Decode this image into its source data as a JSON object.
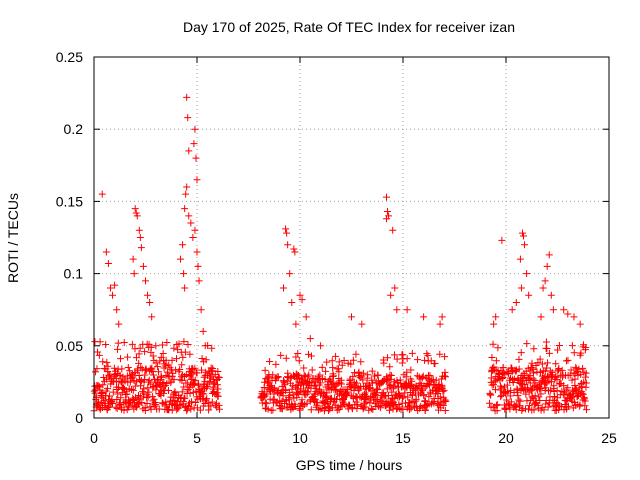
{
  "chart_data": {
    "type": "scatter",
    "title": "Day 170 of 2025, Rate Of TEC Index for receiver izan",
    "xlabel": "GPS time / hours",
    "ylabel": "ROTI / TECUs",
    "xlim": [
      0,
      25
    ],
    "ylim": [
      0,
      0.25
    ],
    "x_ticks": [
      0,
      5,
      10,
      15,
      20,
      25
    ],
    "x_tick_labels": [
      "0",
      "5",
      "10",
      "15",
      "20",
      "25"
    ],
    "y_ticks": [
      0,
      0.05,
      0.1,
      0.15,
      0.2,
      0.25
    ],
    "y_tick_labels": [
      "0",
      "0.05",
      "0.1",
      "0.15",
      "0.2",
      "0.25"
    ],
    "grid": true,
    "marker": "plus",
    "color": "#ff0000",
    "segments": [
      {
        "x_range": [
          0.0,
          6.1
        ],
        "baseline": [
          0.005,
          0.035
        ]
      },
      {
        "x_range": [
          8.1,
          17.1
        ],
        "baseline": [
          0.005,
          0.03
        ]
      },
      {
        "x_range": [
          19.2,
          23.9
        ],
        "baseline": [
          0.005,
          0.035
        ]
      }
    ],
    "series": [
      {
        "values": [
          [
            0.4,
            0.155
          ],
          [
            0.6,
            0.115
          ],
          [
            0.7,
            0.107
          ],
          [
            0.8,
            0.09
          ],
          [
            0.9,
            0.085
          ],
          [
            1.0,
            0.092
          ],
          [
            1.1,
            0.075
          ],
          [
            1.2,
            0.065
          ],
          [
            2.0,
            0.145
          ],
          [
            2.05,
            0.142
          ],
          [
            2.1,
            0.14
          ],
          [
            2.2,
            0.13
          ],
          [
            2.25,
            0.125
          ],
          [
            2.3,
            0.118
          ],
          [
            1.9,
            0.11
          ],
          [
            1.95,
            0.1
          ],
          [
            2.4,
            0.105
          ],
          [
            2.5,
            0.095
          ],
          [
            2.6,
            0.085
          ],
          [
            2.7,
            0.08
          ],
          [
            2.8,
            0.07
          ],
          [
            3.0,
            0.05
          ],
          [
            3.5,
            0.04
          ],
          [
            4.5,
            0.222
          ],
          [
            4.55,
            0.208
          ],
          [
            4.6,
            0.185
          ],
          [
            4.5,
            0.16
          ],
          [
            4.45,
            0.155
          ],
          [
            4.4,
            0.145
          ],
          [
            4.6,
            0.14
          ],
          [
            4.7,
            0.135
          ],
          [
            4.9,
            0.2
          ],
          [
            4.85,
            0.19
          ],
          [
            4.95,
            0.18
          ],
          [
            5.0,
            0.165
          ],
          [
            4.9,
            0.13
          ],
          [
            4.8,
            0.125
          ],
          [
            5.0,
            0.115
          ],
          [
            5.05,
            0.105
          ],
          [
            4.3,
            0.12
          ],
          [
            4.2,
            0.11
          ],
          [
            4.35,
            0.1
          ],
          [
            4.4,
            0.09
          ],
          [
            5.1,
            0.095
          ],
          [
            5.2,
            0.075
          ],
          [
            5.3,
            0.06
          ],
          [
            5.4,
            0.05
          ],
          [
            9.3,
            0.131
          ],
          [
            9.35,
            0.128
          ],
          [
            9.4,
            0.12
          ],
          [
            9.7,
            0.117
          ],
          [
            9.75,
            0.115
          ],
          [
            9.5,
            0.1
          ],
          [
            9.2,
            0.09
          ],
          [
            9.6,
            0.08
          ],
          [
            10.0,
            0.085
          ],
          [
            10.1,
            0.082
          ],
          [
            10.3,
            0.07
          ],
          [
            9.8,
            0.065
          ],
          [
            10.5,
            0.055
          ],
          [
            11.0,
            0.05
          ],
          [
            14.2,
            0.153
          ],
          [
            14.25,
            0.143
          ],
          [
            14.3,
            0.14
          ],
          [
            14.2,
            0.138
          ],
          [
            14.5,
            0.13
          ],
          [
            14.6,
            0.09
          ],
          [
            14.4,
            0.085
          ],
          [
            14.7,
            0.075
          ],
          [
            13.0,
            0.065
          ],
          [
            12.5,
            0.07
          ],
          [
            15.2,
            0.075
          ],
          [
            16.0,
            0.07
          ],
          [
            16.8,
            0.065
          ],
          [
            16.9,
            0.07
          ],
          [
            19.8,
            0.123
          ],
          [
            20.8,
            0.128
          ],
          [
            20.85,
            0.126
          ],
          [
            20.9,
            0.12
          ],
          [
            21.0,
            0.1
          ],
          [
            20.7,
            0.11
          ],
          [
            20.75,
            0.09
          ],
          [
            21.1,
            0.085
          ],
          [
            20.5,
            0.08
          ],
          [
            20.3,
            0.075
          ],
          [
            19.5,
            0.07
          ],
          [
            19.4,
            0.065
          ],
          [
            22.1,
            0.113
          ],
          [
            22.0,
            0.105
          ],
          [
            21.9,
            0.095
          ],
          [
            21.8,
            0.09
          ],
          [
            22.2,
            0.085
          ],
          [
            22.3,
            0.075
          ],
          [
            21.7,
            0.07
          ],
          [
            22.8,
            0.075
          ],
          [
            23.0,
            0.072
          ],
          [
            23.3,
            0.07
          ],
          [
            23.6,
            0.065
          ]
        ]
      }
    ]
  }
}
